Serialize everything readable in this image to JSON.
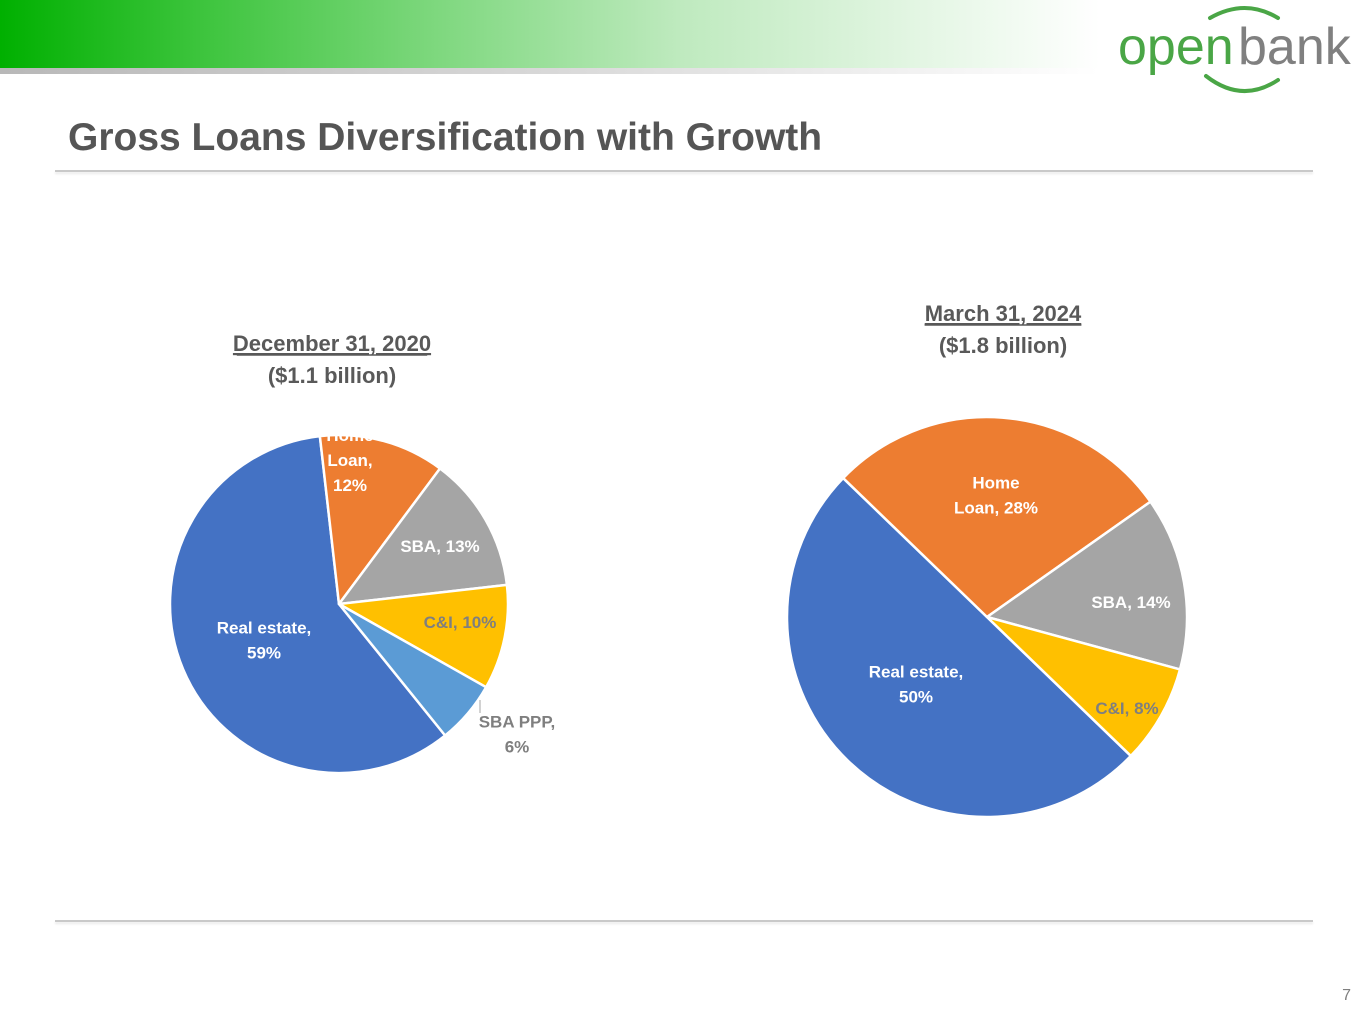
{
  "header": {
    "logo": {
      "word_left": "open",
      "word_right": "bank",
      "colors": {
        "green": "#4aa646",
        "gray": "#808080"
      }
    },
    "band_colors": [
      "#00b000",
      "#ffffff"
    ]
  },
  "page_title": "Gross Loans Diversification with Growth",
  "page_number": "7",
  "chart_data": [
    {
      "type": "pie",
      "title": "December 31, 2020",
      "subtitle": "($1.1 billion)",
      "slices": [
        {
          "label": "Real estate",
          "value": 59,
          "label_lines": [
            "Real estate,",
            "59%"
          ],
          "color": "#4472c4",
          "label_color": "#ffffff"
        },
        {
          "label": "Home Loan",
          "value": 12,
          "label_lines": [
            "Home",
            "Loan,",
            "12%"
          ],
          "color": "#ed7d31",
          "label_color": "#ffffff"
        },
        {
          "label": "SBA",
          "value": 13,
          "label_lines": [
            "SBA, 13%"
          ],
          "color": "#a5a5a5",
          "label_color": "#ffffff"
        },
        {
          "label": "C&I",
          "value": 10,
          "label_lines": [
            "C&I, 10%"
          ],
          "color": "#ffc000",
          "label_color": "#7f7f7f"
        },
        {
          "label": "SBA PPP",
          "value": 6,
          "label_lines": [
            "SBA PPP,",
            "6%"
          ],
          "color": "#5b9bd5",
          "label_color": "#7f7f7f"
        }
      ]
    },
    {
      "type": "pie",
      "title": "March 31, 2024",
      "subtitle": "($1.8 billion)",
      "slices": [
        {
          "label": "Real estate",
          "value": 50,
          "label_lines": [
            "Real estate,",
            "50%"
          ],
          "color": "#4472c4",
          "label_color": "#ffffff"
        },
        {
          "label": "Home Loan",
          "value": 28,
          "label_lines": [
            "Home",
            "Loan, 28%"
          ],
          "color": "#ed7d31",
          "label_color": "#ffffff"
        },
        {
          "label": "SBA",
          "value": 14,
          "label_lines": [
            "SBA, 14%"
          ],
          "color": "#a5a5a5",
          "label_color": "#ffffff"
        },
        {
          "label": "C&I",
          "value": 8,
          "label_lines": [
            "C&I, 8%"
          ],
          "color": "#ffc000",
          "label_color": "#7f7f7f"
        }
      ]
    }
  ]
}
